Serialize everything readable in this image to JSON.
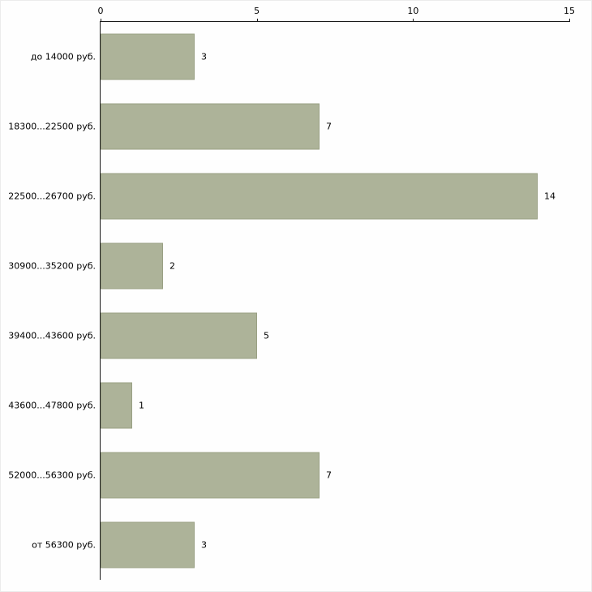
{
  "chart_data": {
    "type": "bar",
    "orientation": "horizontal",
    "title": "",
    "xlabel": "",
    "ylabel": "",
    "categories": [
      "до 14000 руб.",
      "18300...22500 руб.",
      "22500...26700 руб.",
      "30900...35200 руб.",
      "39400...43600 руб.",
      "43600...47800 руб.",
      "52000...56300 руб.",
      "от 56300 руб."
    ],
    "values": [
      3,
      7,
      14,
      2,
      5,
      1,
      7,
      3
    ],
    "xlim": [
      0,
      15
    ],
    "x_ticks": [
      0,
      5,
      10,
      15
    ],
    "axis_position": "top",
    "grid": false,
    "legend": "none",
    "bar_color": "#adb399",
    "bar_border_color": "#99a084",
    "axis_color": "#1a1a1a",
    "text_color": "#000000",
    "background": "#fefefe"
  }
}
